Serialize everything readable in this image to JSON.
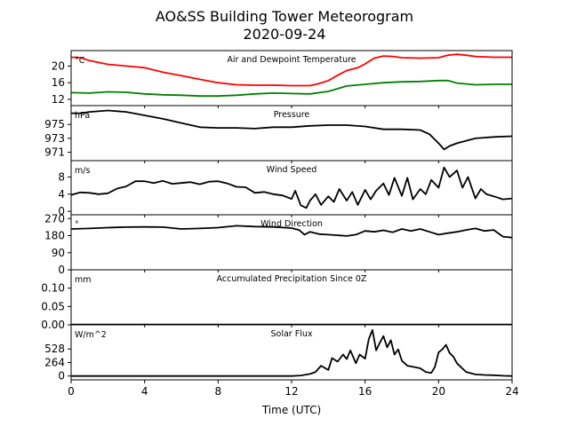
{
  "title_line1": "AO&SS Building Tower Meteorogram",
  "title_line2": "2020-09-24",
  "xlabel": "Time (UTC)",
  "chart_data": {
    "type": "line",
    "x_range": [
      0,
      24
    ],
    "x_ticks": [
      0,
      4,
      8,
      12,
      16,
      20,
      24
    ],
    "panels": [
      {
        "key": "temp",
        "title": "Air and Dewpoint Temperature",
        "unit": "°C",
        "ylim": [
          10.5,
          23.7
        ],
        "yticks": [
          20,
          16,
          12
        ],
        "series": [
          {
            "color": "#ff0000",
            "points": [
              [
                0,
                22.1
              ],
              [
                0.5,
                22.0
              ],
              [
                1,
                21.3
              ],
              [
                2,
                20.4
              ],
              [
                3,
                20.0
              ],
              [
                4,
                19.6
              ],
              [
                5,
                18.5
              ],
              [
                6,
                17.7
              ],
              [
                7,
                16.8
              ],
              [
                8,
                16.0
              ],
              [
                9,
                15.5
              ],
              [
                10,
                15.4
              ],
              [
                11,
                15.4
              ],
              [
                12,
                15.3
              ],
              [
                13,
                15.3
              ],
              [
                13.5,
                15.8
              ],
              [
                14,
                16.5
              ],
              [
                14.6,
                18.0
              ],
              [
                15,
                18.9
              ],
              [
                15.6,
                19.6
              ],
              [
                16,
                20.5
              ],
              [
                16.5,
                21.9
              ],
              [
                17,
                22.4
              ],
              [
                17.5,
                22.3
              ],
              [
                18,
                22.0
              ],
              [
                19,
                21.9
              ],
              [
                20,
                22.0
              ],
              [
                20.5,
                22.6
              ],
              [
                21,
                22.8
              ],
              [
                21.5,
                22.6
              ],
              [
                22,
                22.3
              ],
              [
                23,
                22.1
              ],
              [
                24,
                22.1
              ]
            ]
          },
          {
            "color": "#008000",
            "points": [
              [
                0,
                13.6
              ],
              [
                1,
                13.5
              ],
              [
                2,
                13.8
              ],
              [
                3,
                13.7
              ],
              [
                4,
                13.3
              ],
              [
                5,
                13.1
              ],
              [
                6,
                13.0
              ],
              [
                7,
                12.8
              ],
              [
                8,
                12.8
              ],
              [
                9,
                13.0
              ],
              [
                10,
                13.3
              ],
              [
                11,
                13.5
              ],
              [
                12,
                13.4
              ],
              [
                13,
                13.3
              ],
              [
                14,
                13.9
              ],
              [
                15,
                15.2
              ],
              [
                16,
                15.6
              ],
              [
                17,
                16.0
              ],
              [
                18,
                16.2
              ],
              [
                19,
                16.3
              ],
              [
                20,
                16.5
              ],
              [
                20.5,
                16.5
              ],
              [
                21,
                15.9
              ],
              [
                22,
                15.5
              ],
              [
                23,
                15.6
              ],
              [
                24,
                15.6
              ]
            ]
          }
        ]
      },
      {
        "key": "pressure",
        "title": "Pressure",
        "unit": "hPa",
        "ylim": [
          969.8,
          977.7
        ],
        "yticks": [
          975,
          973,
          971
        ],
        "series": [
          {
            "color": "#000000",
            "points": [
              [
                0,
                976.6
              ],
              [
                0.5,
                976.6
              ],
              [
                1,
                976.8
              ],
              [
                2,
                977.0
              ],
              [
                3,
                976.8
              ],
              [
                4,
                976.3
              ],
              [
                5,
                975.8
              ],
              [
                6,
                975.2
              ],
              [
                7,
                974.6
              ],
              [
                8,
                974.5
              ],
              [
                9,
                974.5
              ],
              [
                10,
                974.4
              ],
              [
                11,
                974.6
              ],
              [
                12,
                974.6
              ],
              [
                13,
                974.8
              ],
              [
                14,
                974.9
              ],
              [
                15,
                974.9
              ],
              [
                16,
                974.7
              ],
              [
                17,
                974.3
              ],
              [
                18,
                974.3
              ],
              [
                19,
                974.2
              ],
              [
                19.5,
                973.6
              ],
              [
                20,
                972.3
              ],
              [
                20.3,
                971.4
              ],
              [
                20.6,
                971.9
              ],
              [
                21,
                972.3
              ],
              [
                22,
                973.0
              ],
              [
                23,
                973.2
              ],
              [
                24,
                973.3
              ]
            ]
          }
        ]
      },
      {
        "key": "wind_speed",
        "title": "Wind Speed",
        "unit": "m/s",
        "ylim": [
          -0.8,
          11.8
        ],
        "yticks": [
          8,
          4,
          0
        ],
        "series": [
          {
            "color": "#000000",
            "points": [
              [
                0,
                3.8
              ],
              [
                0.5,
                4.4
              ],
              [
                1,
                4.3
              ],
              [
                1.5,
                4.0
              ],
              [
                2,
                4.2
              ],
              [
                2.5,
                5.3
              ],
              [
                3,
                5.8
              ],
              [
                3.5,
                7.0
              ],
              [
                4,
                7.0
              ],
              [
                4.5,
                6.6
              ],
              [
                5,
                7.1
              ],
              [
                5.5,
                6.4
              ],
              [
                6,
                6.6
              ],
              [
                6.5,
                6.8
              ],
              [
                7,
                6.3
              ],
              [
                7.5,
                6.9
              ],
              [
                8,
                7.0
              ],
              [
                8.5,
                6.5
              ],
              [
                9,
                5.7
              ],
              [
                9.5,
                5.6
              ],
              [
                10,
                4.3
              ],
              [
                10.5,
                4.5
              ],
              [
                11,
                4.0
              ],
              [
                11.5,
                3.7
              ],
              [
                12,
                2.9
              ],
              [
                12.2,
                4.8
              ],
              [
                12.5,
                1.4
              ],
              [
                12.8,
                0.8
              ],
              [
                13,
                2.5
              ],
              [
                13.3,
                4.0
              ],
              [
                13.6,
                1.5
              ],
              [
                14,
                3.5
              ],
              [
                14.3,
                2.2
              ],
              [
                14.6,
                5.2
              ],
              [
                15,
                2.5
              ],
              [
                15.3,
                4.5
              ],
              [
                15.6,
                1.5
              ],
              [
                16,
                5.0
              ],
              [
                16.3,
                2.8
              ],
              [
                16.6,
                4.8
              ],
              [
                17,
                6.5
              ],
              [
                17.3,
                3.8
              ],
              [
                17.6,
                7.8
              ],
              [
                18,
                3.6
              ],
              [
                18.3,
                7.8
              ],
              [
                18.6,
                2.8
              ],
              [
                19,
                5.2
              ],
              [
                19.3,
                4.0
              ],
              [
                19.6,
                7.3
              ],
              [
                20,
                5.5
              ],
              [
                20.3,
                10.2
              ],
              [
                20.6,
                8.0
              ],
              [
                21,
                9.5
              ],
              [
                21.3,
                5.5
              ],
              [
                21.6,
                8.0
              ],
              [
                22,
                3.0
              ],
              [
                22.3,
                5.2
              ],
              [
                22.6,
                4.0
              ],
              [
                23,
                3.5
              ],
              [
                23.5,
                2.8
              ],
              [
                24,
                3.0
              ]
            ]
          }
        ]
      },
      {
        "key": "wind_dir",
        "title": "Wind Direction",
        "unit": "°",
        "ylim": [
          0,
          290
        ],
        "yticks": [
          270,
          180,
          90,
          0
        ],
        "series": [
          {
            "color": "#000000",
            "points": [
              [
                0,
                215
              ],
              [
                1,
                218
              ],
              [
                2,
                222
              ],
              [
                3,
                225
              ],
              [
                4,
                226
              ],
              [
                5,
                225
              ],
              [
                6,
                215
              ],
              [
                7,
                218
              ],
              [
                8,
                222
              ],
              [
                9,
                232
              ],
              [
                10,
                228
              ],
              [
                11,
                226
              ],
              [
                12,
                220
              ],
              [
                12.4,
                210
              ],
              [
                12.7,
                185
              ],
              [
                13,
                200
              ],
              [
                13.5,
                188
              ],
              [
                14,
                185
              ],
              [
                14.5,
                182
              ],
              [
                15,
                178
              ],
              [
                15.5,
                185
              ],
              [
                16,
                205
              ],
              [
                16.5,
                200
              ],
              [
                17,
                208
              ],
              [
                17.5,
                198
              ],
              [
                18,
                215
              ],
              [
                18.5,
                205
              ],
              [
                19,
                215
              ],
              [
                19.5,
                200
              ],
              [
                20,
                185
              ],
              [
                20.5,
                193
              ],
              [
                21,
                200
              ],
              [
                21.5,
                210
              ],
              [
                22,
                218
              ],
              [
                22.5,
                205
              ],
              [
                23,
                210
              ],
              [
                23.5,
                175
              ],
              [
                24,
                170
              ]
            ]
          }
        ]
      },
      {
        "key": "precip",
        "title": "Accumulated Precipitation Since 0Z",
        "unit": "mm",
        "ylim": [
          0,
          0.15
        ],
        "yticks": [
          0.1,
          0.05,
          0.0
        ],
        "yticklabels": [
          "0.10",
          "0.05",
          "0.00"
        ],
        "series": [
          {
            "color": "#000000",
            "points": [
              [
                0,
                0
              ],
              [
                24,
                0
              ]
            ]
          }
        ]
      },
      {
        "key": "solar",
        "title": "Solar Flux",
        "unit": "W/m^2",
        "ylim": [
          -75,
          1000
        ],
        "yticks": [
          528,
          264,
          0
        ],
        "series": [
          {
            "color": "#000000",
            "points": [
              [
                0,
                0
              ],
              [
                12,
                0
              ],
              [
                12.5,
                10
              ],
              [
                13,
                40
              ],
              [
                13.3,
                80
              ],
              [
                13.6,
                200
              ],
              [
                14,
                120
              ],
              [
                14.2,
                350
              ],
              [
                14.5,
                280
              ],
              [
                14.8,
                420
              ],
              [
                15,
                330
              ],
              [
                15.2,
                500
              ],
              [
                15.5,
                250
              ],
              [
                15.7,
                420
              ],
              [
                16,
                340
              ],
              [
                16.2,
                720
              ],
              [
                16.4,
                900
              ],
              [
                16.6,
                500
              ],
              [
                16.8,
                650
              ],
              [
                17,
                780
              ],
              [
                17.2,
                560
              ],
              [
                17.4,
                700
              ],
              [
                17.6,
                420
              ],
              [
                17.8,
                520
              ],
              [
                18,
                300
              ],
              [
                18.3,
                200
              ],
              [
                18.6,
                180
              ],
              [
                19,
                150
              ],
              [
                19.3,
                80
              ],
              [
                19.6,
                60
              ],
              [
                19.8,
                180
              ],
              [
                20,
                460
              ],
              [
                20.2,
                520
              ],
              [
                20.4,
                610
              ],
              [
                20.6,
                450
              ],
              [
                20.8,
                380
              ],
              [
                21,
                250
              ],
              [
                21.2,
                180
              ],
              [
                21.5,
                80
              ],
              [
                22,
                30
              ],
              [
                22.5,
                20
              ],
              [
                23,
                15
              ],
              [
                23.5,
                5
              ],
              [
                24,
                0
              ]
            ]
          }
        ]
      }
    ]
  }
}
